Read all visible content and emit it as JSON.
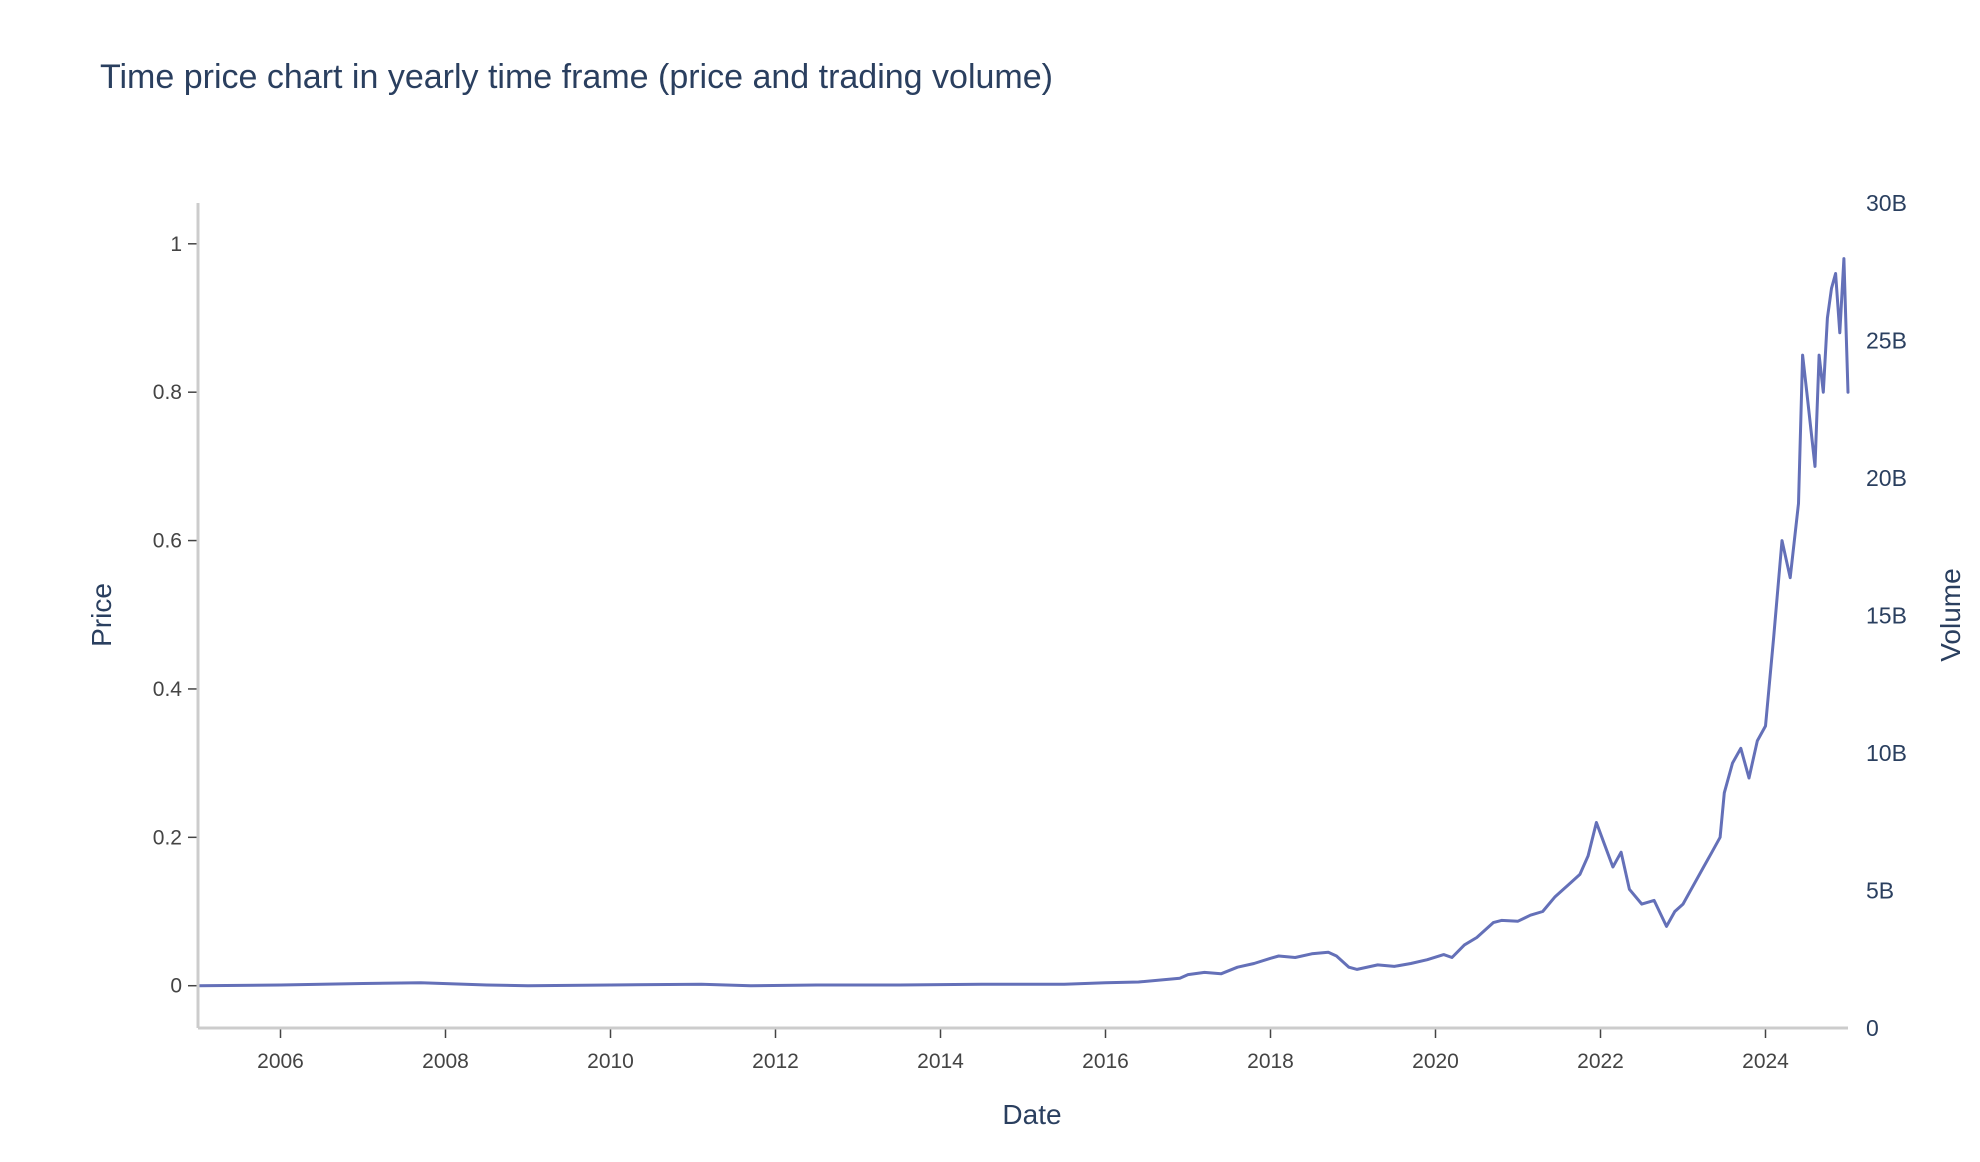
{
  "chart_data": {
    "type": "line",
    "title": "Time price chart in yearly time frame (price and trading volume)",
    "xlabel": "Date",
    "ylabel": "Price",
    "y2label": "Volume",
    "xlim": [
      2005.0,
      2025.0
    ],
    "ylim": [
      -0.057,
      1.055
    ],
    "y2lim": [
      0,
      30000000000
    ],
    "x_ticks": [
      2006,
      2008,
      2010,
      2012,
      2014,
      2016,
      2018,
      2020,
      2022,
      2024
    ],
    "x_tick_labels": [
      "2006",
      "2008",
      "2010",
      "2012",
      "2014",
      "2016",
      "2018",
      "2020",
      "2022",
      "2024"
    ],
    "y_ticks": [
      0,
      0.2,
      0.4,
      0.6,
      0.8,
      1
    ],
    "y_tick_labels": [
      "0",
      "0.2",
      "0.4",
      "0.6",
      "0.8",
      "1"
    ],
    "y2_ticks": [
      0,
      5000000000,
      10000000000,
      15000000000,
      20000000000,
      25000000000,
      30000000000
    ],
    "y2_tick_labels": [
      "0",
      "5B",
      "10B",
      "15B",
      "20B",
      "25B",
      "30B"
    ],
    "grid": false,
    "legend": "none",
    "series": [
      {
        "color": "#636efa",
        "x": [
          2005.0,
          2006.0,
          2007.0,
          2007.7,
          2008.5,
          2009.0,
          2010.0,
          2011.1,
          2011.7,
          2012.5,
          2013.5,
          2014.5,
          2015.5,
          2016.0,
          2016.4,
          2016.9,
          2017.0,
          2017.2,
          2017.4,
          2017.6,
          2017.8,
          2018.0,
          2018.1,
          2018.3,
          2018.5,
          2018.7,
          2018.8,
          2018.95,
          2019.05,
          2019.3,
          2019.5,
          2019.7,
          2019.9,
          2020.1,
          2020.2,
          2020.35,
          2020.5,
          2020.7,
          2020.8,
          2021.0,
          2021.15,
          2021.3,
          2021.45,
          2021.6,
          2021.75,
          2021.85,
          2021.95,
          2022.05,
          2022.15,
          2022.25,
          2022.35,
          2022.5,
          2022.65,
          2022.8,
          2022.9,
          2023.0,
          2023.1,
          2023.25,
          2023.35,
          2023.45,
          2023.5,
          2023.6,
          2023.7,
          2023.8,
          2023.9,
          2024.0,
          2024.1,
          2024.2,
          2024.3,
          2024.4,
          2024.45,
          2024.5,
          2024.55,
          2024.6,
          2024.65,
          2024.7,
          2024.75,
          2024.8,
          2024.85,
          2024.9,
          2024.95,
          2025.0
        ],
        "y": [
          0.0,
          0.001,
          0.003,
          0.004,
          0.001,
          0.0,
          0.001,
          0.002,
          0.0,
          0.001,
          0.001,
          0.002,
          0.002,
          0.004,
          0.005,
          0.01,
          0.015,
          0.018,
          0.016,
          0.025,
          0.03,
          0.037,
          0.04,
          0.038,
          0.043,
          0.045,
          0.04,
          0.025,
          0.022,
          0.028,
          0.026,
          0.03,
          0.035,
          0.042,
          0.038,
          0.055,
          0.065,
          0.085,
          0.088,
          0.087,
          0.095,
          0.1,
          0.12,
          0.135,
          0.15,
          0.175,
          0.22,
          0.19,
          0.16,
          0.18,
          0.13,
          0.11,
          0.115,
          0.08,
          0.1,
          0.11,
          0.13,
          0.16,
          0.18,
          0.2,
          0.26,
          0.3,
          0.32,
          0.28,
          0.33,
          0.35,
          0.47,
          0.6,
          0.55,
          0.65,
          0.85,
          0.8,
          0.75,
          0.7,
          0.85,
          0.8,
          0.9,
          0.94,
          0.96,
          0.88,
          0.98,
          0.8
        ]
      }
    ]
  }
}
